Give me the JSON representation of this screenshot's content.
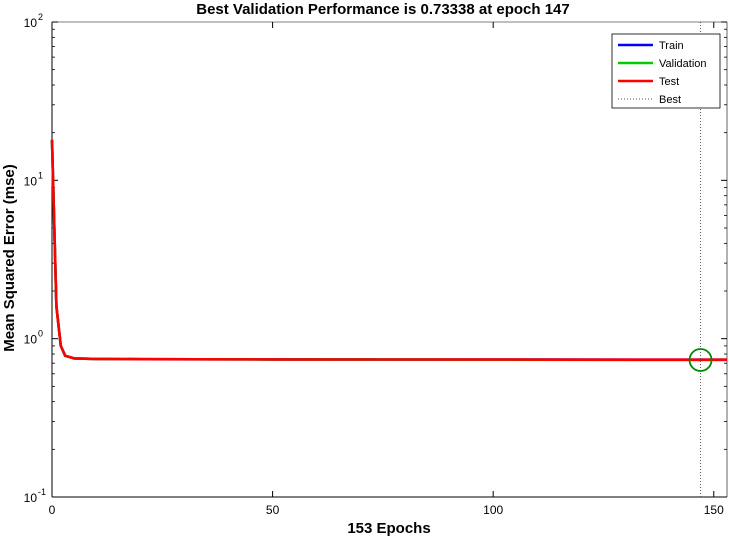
{
  "chart_data": {
    "type": "line",
    "title": "Best Validation Performance is 0.73338 at epoch 147",
    "xlabel": "153 Epochs",
    "ylabel": "Mean Squared Error  (mse)",
    "xlim": [
      0,
      153
    ],
    "ylim": [
      0.1,
      100
    ],
    "yscale": "log",
    "x_ticks": [
      "0",
      "50",
      "100",
      "150"
    ],
    "y_ticks": [
      {
        "base": "10",
        "exp": "2"
      },
      {
        "base": "10",
        "exp": "1"
      },
      {
        "base": "10",
        "exp": "0"
      },
      {
        "base": "10",
        "exp": "-1"
      }
    ],
    "grid": false,
    "legend_position": "top-right",
    "best_epoch": 147,
    "best_value": 0.73338,
    "series": [
      {
        "name": "Train",
        "color": "#0000ff",
        "x": [
          0,
          1,
          2,
          3,
          5,
          10,
          20,
          50,
          100,
          153
        ],
        "y": [
          18,
          1.6,
          0.9,
          0.78,
          0.75,
          0.745,
          0.742,
          0.74,
          0.738,
          0.736
        ]
      },
      {
        "name": "Validation",
        "color": "#00cc00",
        "x": [
          0,
          1,
          2,
          3,
          5,
          10,
          20,
          50,
          100,
          147,
          153
        ],
        "y": [
          18,
          1.6,
          0.9,
          0.78,
          0.75,
          0.745,
          0.742,
          0.74,
          0.737,
          0.73338,
          0.7336
        ]
      },
      {
        "name": "Test",
        "color": "#ff0000",
        "x": [
          0,
          1,
          2,
          3,
          5,
          10,
          20,
          50,
          100,
          153
        ],
        "y": [
          18,
          1.6,
          0.9,
          0.78,
          0.75,
          0.745,
          0.742,
          0.74,
          0.738,
          0.736
        ]
      },
      {
        "name": "Best",
        "color": "#555555",
        "style": "dotted"
      }
    ]
  }
}
